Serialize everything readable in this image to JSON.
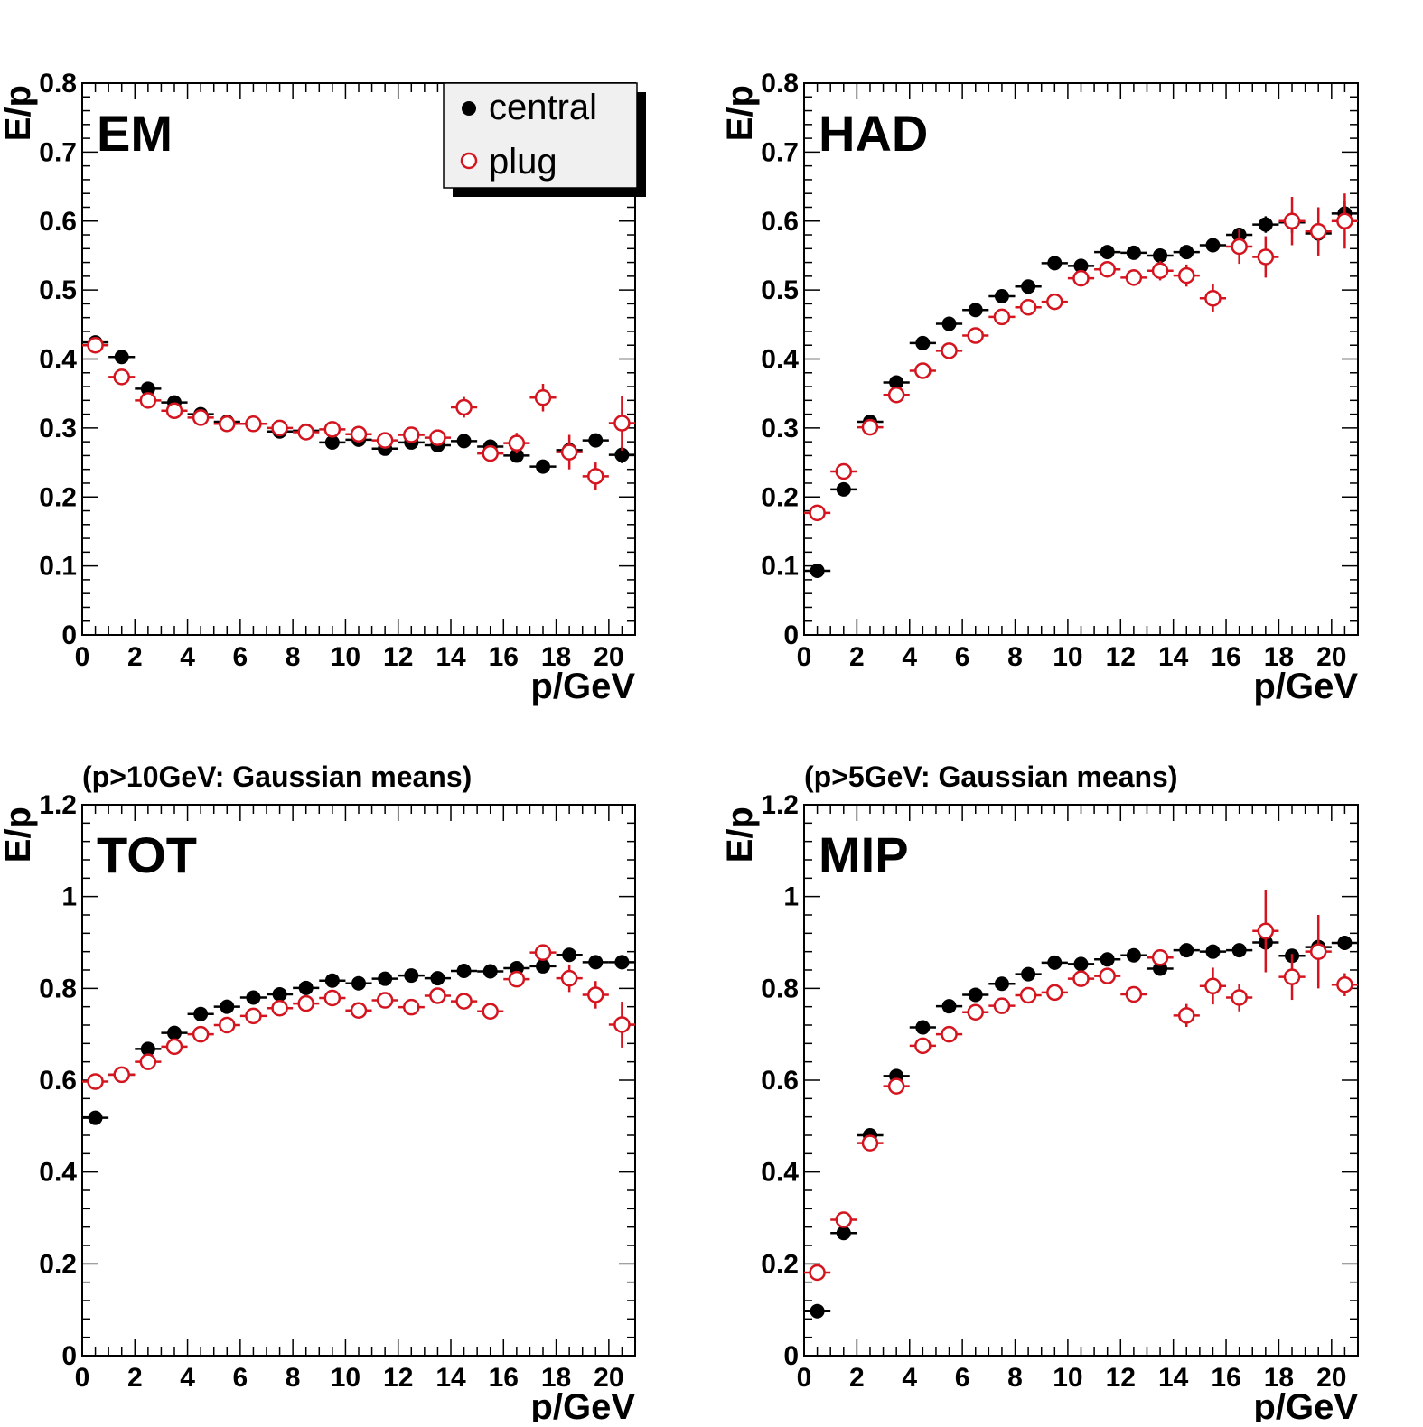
{
  "series_names": {
    "central": "central",
    "plug": "plug"
  },
  "colors": {
    "central": "#000000",
    "plug": "#d4141e",
    "axis": "#000000",
    "legend_bg": "#f0f0f0"
  },
  "chart_data": [
    {
      "type": "scatter",
      "label": "EM",
      "subtitle": "",
      "xlabel": "p/GeV",
      "ylabel": "E/p",
      "xlim": [
        0,
        21
      ],
      "ylim": [
        0,
        0.8
      ],
      "xticks": [
        "0",
        "2",
        "4",
        "6",
        "8",
        "10",
        "12",
        "14",
        "16",
        "18",
        "20"
      ],
      "yticks": [
        "0",
        "0.1",
        "0.2",
        "0.3",
        "0.4",
        "0.5",
        "0.6",
        "0.7",
        "0.8"
      ],
      "legend": "top-right",
      "x": [
        0.5,
        1.5,
        2.5,
        3.5,
        4.5,
        5.5,
        6.5,
        7.5,
        8.5,
        9.5,
        10.5,
        11.5,
        12.5,
        13.5,
        14.5,
        15.5,
        16.5,
        17.5,
        18.5,
        19.5,
        20.5
      ],
      "series": [
        {
          "key": "central",
          "values": [
            0.424,
            0.403,
            0.357,
            0.337,
            0.32,
            0.309,
            0.306,
            0.295,
            0.296,
            0.279,
            0.283,
            0.27,
            0.279,
            0.275,
            0.281,
            0.273,
            0.26,
            0.244,
            0.268,
            0.282,
            0.261
          ],
          "yerr": [
            0.005,
            0.005,
            0.005,
            0.005,
            0.005,
            0.005,
            0.005,
            0.005,
            0.005,
            0.006,
            0.006,
            0.006,
            0.006,
            0.006,
            0.007,
            0.008,
            0.008,
            0.01,
            0.012,
            0.01,
            0.012
          ]
        },
        {
          "key": "plug",
          "values": [
            0.42,
            0.374,
            0.34,
            0.325,
            0.315,
            0.306,
            0.306,
            0.3,
            0.294,
            0.298,
            0.291,
            0.282,
            0.29,
            0.286,
            0.33,
            0.263,
            0.278,
            0.344,
            0.265,
            0.23,
            0.307
          ],
          "yerr": [
            0.006,
            0.006,
            0.006,
            0.006,
            0.006,
            0.006,
            0.006,
            0.006,
            0.007,
            0.008,
            0.008,
            0.008,
            0.009,
            0.01,
            0.015,
            0.012,
            0.015,
            0.02,
            0.025,
            0.02,
            0.04
          ]
        }
      ]
    },
    {
      "type": "scatter",
      "label": "HAD",
      "subtitle": "",
      "xlabel": "p/GeV",
      "ylabel": "E/p",
      "xlim": [
        0,
        21
      ],
      "ylim": [
        0,
        0.8
      ],
      "xticks": [
        "0",
        "2",
        "4",
        "6",
        "8",
        "10",
        "12",
        "14",
        "16",
        "18",
        "20"
      ],
      "yticks": [
        "0",
        "0.1",
        "0.2",
        "0.3",
        "0.4",
        "0.5",
        "0.6",
        "0.7",
        "0.8"
      ],
      "legend": "",
      "x": [
        0.5,
        1.5,
        2.5,
        3.5,
        4.5,
        5.5,
        6.5,
        7.5,
        8.5,
        9.5,
        10.5,
        11.5,
        12.5,
        13.5,
        14.5,
        15.5,
        16.5,
        17.5,
        18.5,
        19.5,
        20.5
      ],
      "series": [
        {
          "key": "central",
          "values": [
            0.093,
            0.211,
            0.309,
            0.366,
            0.423,
            0.451,
            0.471,
            0.491,
            0.505,
            0.539,
            0.535,
            0.555,
            0.554,
            0.55,
            0.555,
            0.565,
            0.58,
            0.595,
            0.598,
            0.582,
            0.611
          ],
          "yerr": [
            0.004,
            0.004,
            0.005,
            0.005,
            0.005,
            0.005,
            0.005,
            0.005,
            0.006,
            0.006,
            0.006,
            0.007,
            0.007,
            0.008,
            0.008,
            0.009,
            0.01,
            0.012,
            0.015,
            0.015,
            0.018
          ]
        },
        {
          "key": "plug",
          "values": [
            0.177,
            0.237,
            0.301,
            0.348,
            0.383,
            0.412,
            0.434,
            0.461,
            0.475,
            0.483,
            0.517,
            0.53,
            0.518,
            0.528,
            0.521,
            0.488,
            0.563,
            0.548,
            0.6,
            0.585,
            0.6
          ],
          "yerr": [
            0.005,
            0.005,
            0.006,
            0.006,
            0.006,
            0.006,
            0.007,
            0.007,
            0.008,
            0.008,
            0.01,
            0.01,
            0.012,
            0.014,
            0.016,
            0.02,
            0.025,
            0.03,
            0.035,
            0.035,
            0.04
          ]
        }
      ]
    },
    {
      "type": "scatter",
      "label": "TOT",
      "subtitle": "(p>10GeV: Gaussian means)",
      "xlabel": "p/GeV",
      "ylabel": "E/p",
      "xlim": [
        0,
        21
      ],
      "ylim": [
        0,
        1.2
      ],
      "xticks": [
        "0",
        "2",
        "4",
        "6",
        "8",
        "10",
        "12",
        "14",
        "16",
        "18",
        "20"
      ],
      "yticks": [
        "0",
        "0.2",
        "0.4",
        "0.6",
        "0.8",
        "1",
        "1.2"
      ],
      "legend": "",
      "x": [
        0.5,
        1.5,
        2.5,
        3.5,
        4.5,
        5.5,
        6.5,
        7.5,
        8.5,
        9.5,
        10.5,
        11.5,
        12.5,
        13.5,
        14.5,
        15.5,
        16.5,
        17.5,
        18.5,
        19.5,
        20.5
      ],
      "series": [
        {
          "key": "central",
          "values": [
            0.518,
            0.612,
            0.668,
            0.703,
            0.744,
            0.76,
            0.78,
            0.787,
            0.801,
            0.817,
            0.811,
            0.821,
            0.828,
            0.822,
            0.838,
            0.837,
            0.844,
            0.848,
            0.873,
            0.857,
            0.857
          ],
          "yerr": [
            0.005,
            0.005,
            0.005,
            0.005,
            0.005,
            0.005,
            0.005,
            0.006,
            0.006,
            0.006,
            0.006,
            0.006,
            0.007,
            0.007,
            0.007,
            0.008,
            0.008,
            0.009,
            0.01,
            0.01,
            0.012
          ]
        },
        {
          "key": "plug",
          "values": [
            0.597,
            0.612,
            0.64,
            0.673,
            0.7,
            0.72,
            0.74,
            0.757,
            0.767,
            0.779,
            0.752,
            0.774,
            0.759,
            0.784,
            0.772,
            0.75,
            0.82,
            0.878,
            0.822,
            0.786,
            0.721
          ],
          "yerr": [
            0.006,
            0.006,
            0.006,
            0.006,
            0.006,
            0.007,
            0.007,
            0.007,
            0.008,
            0.008,
            0.01,
            0.01,
            0.011,
            0.012,
            0.012,
            0.013,
            0.015,
            0.018,
            0.03,
            0.03,
            0.05
          ]
        }
      ]
    },
    {
      "type": "scatter",
      "label": "MIP",
      "subtitle": "(p>5GeV: Gaussian means)",
      "xlabel": "p/GeV",
      "ylabel": "E/p",
      "xlim": [
        0,
        21
      ],
      "ylim": [
        0,
        1.2
      ],
      "xticks": [
        "0",
        "2",
        "4",
        "6",
        "8",
        "10",
        "12",
        "14",
        "16",
        "18",
        "20"
      ],
      "yticks": [
        "0",
        "0.2",
        "0.4",
        "0.6",
        "0.8",
        "1",
        "1.2"
      ],
      "legend": "",
      "x": [
        0.5,
        1.5,
        2.5,
        3.5,
        4.5,
        5.5,
        6.5,
        7.5,
        8.5,
        9.5,
        10.5,
        11.5,
        12.5,
        13.5,
        14.5,
        15.5,
        16.5,
        17.5,
        18.5,
        19.5,
        20.5
      ],
      "series": [
        {
          "key": "central",
          "values": [
            0.097,
            0.267,
            0.48,
            0.609,
            0.715,
            0.761,
            0.786,
            0.81,
            0.831,
            0.856,
            0.853,
            0.863,
            0.872,
            0.843,
            0.883,
            0.88,
            0.883,
            0.9,
            0.871,
            0.89,
            0.899
          ],
          "yerr": [
            0.005,
            0.005,
            0.006,
            0.006,
            0.006,
            0.006,
            0.006,
            0.006,
            0.007,
            0.007,
            0.007,
            0.008,
            0.008,
            0.009,
            0.01,
            0.01,
            0.011,
            0.012,
            0.015,
            0.015,
            0.015
          ]
        },
        {
          "key": "plug",
          "values": [
            0.181,
            0.296,
            0.463,
            0.587,
            0.675,
            0.7,
            0.748,
            0.762,
            0.785,
            0.791,
            0.821,
            0.827,
            0.787,
            0.867,
            0.741,
            0.805,
            0.78,
            0.925,
            0.825,
            0.88,
            0.808
          ],
          "yerr": [
            0.006,
            0.006,
            0.008,
            0.008,
            0.009,
            0.01,
            0.01,
            0.011,
            0.012,
            0.012,
            0.014,
            0.015,
            0.016,
            0.018,
            0.025,
            0.04,
            0.03,
            0.09,
            0.05,
            0.08,
            0.025
          ]
        }
      ]
    }
  ]
}
